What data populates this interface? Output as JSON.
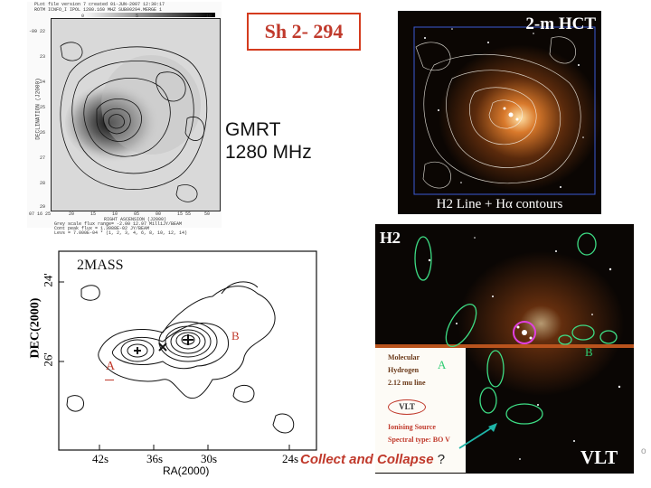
{
  "title": "Sh 2- 294",
  "gmrt": {
    "label_line1": "GMRT",
    "label_line2": "1280 MHz",
    "header1": "PLot file version 7  created 01-JUN-2007 12:30:17",
    "header2": "ROTM  ICNFO_I  IPOL  1280.160 MHZ  SUB00294.MERGE 1",
    "colorbar_ticks": [
      "0",
      "5",
      "10"
    ],
    "dec_ticks": [
      "-09 22",
      "23",
      "24",
      "25",
      "26",
      "27",
      "28",
      "29"
    ],
    "ra_ticks": [
      "07 16 25",
      "20",
      "15",
      "10",
      "05",
      "00",
      "15 55",
      "50"
    ],
    "xlabel": "RIGHT ASCENSION (J2000)",
    "ylabel": "DECLINATION (J2000)",
    "footer1": "Grey scale flux range= -2.00 12.97 MilliJY/BEAM",
    "footer2": "Cont peak flux = 1.3988E-02 JY/BEAM",
    "footer3": "Levs = 7.000E-04 * (1, 2, 3, 4, 6, 8, 10, 12, 14)"
  },
  "hct": {
    "title": "2-m HCT",
    "caption": "H2 Line + Hα contours"
  },
  "twomass": {
    "label": "2MASS",
    "label_a": "A",
    "label_b": "B",
    "ylabel": "DEC(2000)",
    "xlabel": "RA(2000)",
    "dec_ticks": [
      "24'",
      "26'"
    ],
    "ra_ticks": [
      "42s",
      "36s",
      "30s",
      "24s"
    ]
  },
  "vlt": {
    "h2_label": "H2",
    "vlt_label": "VLT",
    "label_a": "A",
    "label_b": "B",
    "legend": {
      "line1": "Molecular",
      "line2": "Hydrogen",
      "line3": "2.12 mu line",
      "vlt": "VLT",
      "ion1": "Ionising Source",
      "ion2": "Spectral type: BO V"
    }
  },
  "caption": {
    "italic": "Collect and Collapse",
    "question": "?"
  },
  "corner_mark": "o",
  "colors": {
    "title_red": "#c0392b",
    "ellipse_green": "#3ddc84",
    "source_magenta": "#e040e0",
    "arrow_teal": "#1fb5a8"
  }
}
